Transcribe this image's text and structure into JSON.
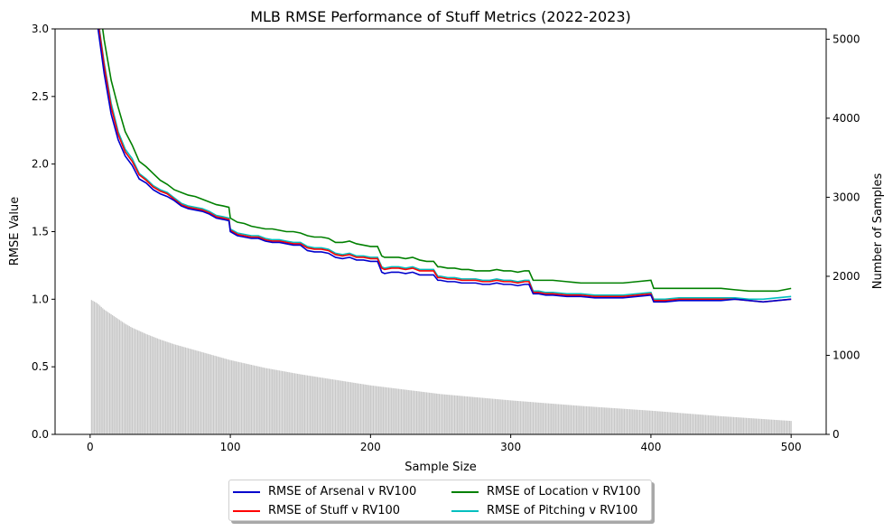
{
  "chart_data": {
    "type": "line",
    "title": "MLB RMSE Performance of Stuff Metrics (2022-2023)",
    "xlabel": "Sample Size",
    "ylabel": "RMSE Value",
    "y2label": "Number of Samples",
    "xlim": [
      -25,
      525
    ],
    "ylim": [
      0,
      3.0
    ],
    "y2lim": [
      0,
      5130
    ],
    "xticks": [
      0,
      100,
      200,
      300,
      400,
      500
    ],
    "yticks": [
      0.0,
      0.5,
      1.0,
      1.5,
      2.0,
      2.5,
      3.0
    ],
    "yticklabels": [
      "0.0",
      "0.5",
      "1.0",
      "1.5",
      "2.0",
      "2.5",
      "3.0"
    ],
    "y2ticks": [
      0,
      1000,
      2000,
      3000,
      4000,
      5000
    ],
    "grid": false,
    "legend_position": "bottom-center",
    "x": [
      1,
      5,
      10,
      15,
      20,
      25,
      30,
      35,
      40,
      45,
      50,
      55,
      60,
      65,
      70,
      75,
      80,
      85,
      90,
      95,
      99,
      100,
      105,
      110,
      115,
      120,
      125,
      130,
      135,
      140,
      145,
      150,
      155,
      160,
      165,
      170,
      175,
      180,
      185,
      190,
      195,
      200,
      205,
      208,
      210,
      215,
      220,
      225,
      230,
      235,
      240,
      245,
      248,
      250,
      255,
      260,
      265,
      270,
      275,
      280,
      285,
      290,
      295,
      300,
      305,
      310,
      313,
      316,
      320,
      325,
      330,
      340,
      350,
      360,
      370,
      380,
      390,
      400,
      402,
      405,
      410,
      420,
      430,
      440,
      450,
      460,
      470,
      480,
      490,
      500
    ],
    "series": [
      {
        "name": "RMSE of Arsenal v RV100",
        "color": "#0000cc",
        "values": [
          3.55,
          3.05,
          2.67,
          2.37,
          2.18,
          2.06,
          1.99,
          1.89,
          1.86,
          1.81,
          1.78,
          1.76,
          1.73,
          1.69,
          1.67,
          1.66,
          1.65,
          1.63,
          1.6,
          1.59,
          1.58,
          1.5,
          1.47,
          1.46,
          1.45,
          1.45,
          1.43,
          1.42,
          1.42,
          1.41,
          1.4,
          1.4,
          1.36,
          1.35,
          1.35,
          1.34,
          1.31,
          1.3,
          1.31,
          1.29,
          1.29,
          1.28,
          1.28,
          1.2,
          1.19,
          1.2,
          1.2,
          1.19,
          1.2,
          1.18,
          1.18,
          1.18,
          1.14,
          1.14,
          1.13,
          1.13,
          1.12,
          1.12,
          1.12,
          1.11,
          1.11,
          1.12,
          1.11,
          1.11,
          1.1,
          1.11,
          1.11,
          1.04,
          1.04,
          1.03,
          1.03,
          1.02,
          1.02,
          1.01,
          1.01,
          1.01,
          1.02,
          1.03,
          0.98,
          0.98,
          0.98,
          0.99,
          0.99,
          0.99,
          0.99,
          1.0,
          0.99,
          0.98,
          0.99,
          1.0
        ]
      },
      {
        "name": "RMSE of Stuff v RV100",
        "color": "#ff0000",
        "values": [
          3.6,
          3.1,
          2.73,
          2.42,
          2.22,
          2.09,
          2.02,
          1.92,
          1.88,
          1.83,
          1.8,
          1.78,
          1.74,
          1.7,
          1.68,
          1.67,
          1.66,
          1.64,
          1.61,
          1.6,
          1.59,
          1.51,
          1.48,
          1.47,
          1.46,
          1.46,
          1.44,
          1.43,
          1.43,
          1.42,
          1.41,
          1.41,
          1.38,
          1.37,
          1.37,
          1.36,
          1.33,
          1.32,
          1.33,
          1.31,
          1.31,
          1.3,
          1.3,
          1.23,
          1.22,
          1.23,
          1.23,
          1.22,
          1.23,
          1.21,
          1.21,
          1.21,
          1.16,
          1.16,
          1.15,
          1.15,
          1.14,
          1.14,
          1.14,
          1.13,
          1.13,
          1.14,
          1.13,
          1.13,
          1.12,
          1.13,
          1.13,
          1.05,
          1.05,
          1.04,
          1.04,
          1.03,
          1.03,
          1.02,
          1.02,
          1.02,
          1.03,
          1.04,
          0.99,
          0.99,
          0.99,
          1.0,
          1.0,
          1.0,
          1.0,
          1.0,
          0.99,
          0.98,
          0.99,
          1.0
        ]
      },
      {
        "name": "RMSE of Location v RV100",
        "color": "#008000",
        "values": [
          3.75,
          3.3,
          2.92,
          2.62,
          2.42,
          2.24,
          2.14,
          2.02,
          1.98,
          1.93,
          1.88,
          1.85,
          1.81,
          1.79,
          1.77,
          1.76,
          1.74,
          1.72,
          1.7,
          1.69,
          1.68,
          1.6,
          1.57,
          1.56,
          1.54,
          1.53,
          1.52,
          1.52,
          1.51,
          1.5,
          1.5,
          1.49,
          1.47,
          1.46,
          1.46,
          1.45,
          1.42,
          1.42,
          1.43,
          1.41,
          1.4,
          1.39,
          1.39,
          1.32,
          1.31,
          1.31,
          1.31,
          1.3,
          1.31,
          1.29,
          1.28,
          1.28,
          1.24,
          1.24,
          1.23,
          1.23,
          1.22,
          1.22,
          1.21,
          1.21,
          1.21,
          1.22,
          1.21,
          1.21,
          1.2,
          1.21,
          1.21,
          1.14,
          1.14,
          1.14,
          1.14,
          1.13,
          1.12,
          1.12,
          1.12,
          1.12,
          1.13,
          1.14,
          1.08,
          1.08,
          1.08,
          1.08,
          1.08,
          1.08,
          1.08,
          1.07,
          1.06,
          1.06,
          1.06,
          1.08
        ]
      },
      {
        "name": "RMSE of Pitching v RV100",
        "color": "#00bfbf",
        "values": [
          3.62,
          3.12,
          2.75,
          2.45,
          2.24,
          2.11,
          2.04,
          1.93,
          1.89,
          1.84,
          1.81,
          1.79,
          1.75,
          1.71,
          1.69,
          1.68,
          1.67,
          1.65,
          1.62,
          1.61,
          1.6,
          1.52,
          1.49,
          1.48,
          1.47,
          1.47,
          1.45,
          1.44,
          1.44,
          1.43,
          1.42,
          1.42,
          1.39,
          1.38,
          1.38,
          1.37,
          1.34,
          1.33,
          1.34,
          1.32,
          1.32,
          1.31,
          1.31,
          1.24,
          1.23,
          1.24,
          1.24,
          1.23,
          1.24,
          1.22,
          1.22,
          1.22,
          1.17,
          1.17,
          1.16,
          1.16,
          1.15,
          1.15,
          1.15,
          1.14,
          1.14,
          1.15,
          1.14,
          1.14,
          1.13,
          1.14,
          1.14,
          1.06,
          1.06,
          1.05,
          1.05,
          1.04,
          1.04,
          1.03,
          1.03,
          1.03,
          1.04,
          1.05,
          1.0,
          1.0,
          1.0,
          1.01,
          1.01,
          1.01,
          1.01,
          1.01,
          1.0,
          1.0,
          1.01,
          1.02
        ]
      }
    ],
    "samples": {
      "name": "Number of Samples",
      "color": "#c8c8c8",
      "axis": "right",
      "x": [
        1,
        5,
        10,
        15,
        20,
        25,
        30,
        40,
        50,
        60,
        80,
        100,
        125,
        150,
        175,
        200,
        250,
        300,
        350,
        400,
        450,
        500
      ],
      "values": [
        1700,
        1660,
        1580,
        1520,
        1460,
        1400,
        1350,
        1270,
        1200,
        1140,
        1040,
        940,
        840,
        760,
        690,
        620,
        510,
        430,
        360,
        300,
        230,
        170
      ]
    }
  }
}
